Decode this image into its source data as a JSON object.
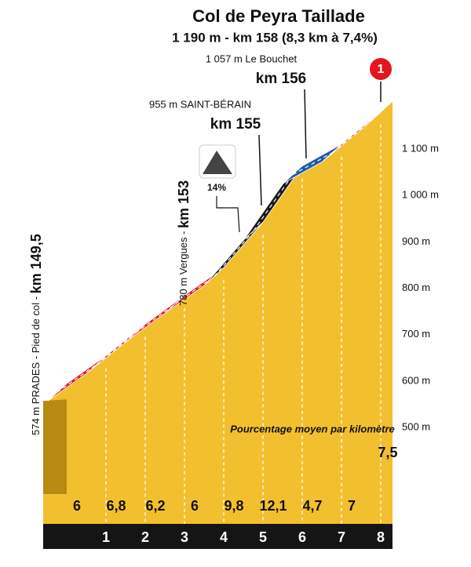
{
  "chart_data": {
    "type": "profile",
    "title": "Col de Peyra Taillade",
    "subtitle": "1 190 m - km 158 (8,3 km à 7,4%)",
    "start_altitude": 574,
    "length": 8.3,
    "km_ticks": [
      1,
      2,
      3,
      4,
      5,
      6,
      7,
      8
    ],
    "values": [
      6,
      6.8,
      6.2,
      6,
      9.8,
      12.1,
      4.7,
      7,
      7.5
    ],
    "value_labels": [
      "6",
      "6,8",
      "6,2",
      "6",
      "9,8",
      "12,1",
      "4,7",
      "7",
      "7,5"
    ],
    "colors": [
      "#e3161d",
      "#e3161d",
      "#e3161d",
      "#e3161d",
      "#1b1b1b",
      "#1b1b1b",
      "#1e5aa8",
      "#e3161d",
      "#e3161d"
    ],
    "ylim": [
      500,
      1100
    ],
    "yticks": [
      {
        "value": 500,
        "label": "500 m"
      },
      {
        "value": 600,
        "label": "600 m"
      },
      {
        "value": 700,
        "label": "700 m"
      },
      {
        "value": 800,
        "label": "800 m"
      },
      {
        "value": 900,
        "label": "900 m"
      },
      {
        "value": 1000,
        "label": "1 000 m"
      },
      {
        "value": 1100,
        "label": "1 100 m"
      }
    ],
    "caption": "Pourcentage moyen par kilomètre",
    "annotations": {
      "start_label": "574 m  PRADES - Pied de col - ",
      "start_km": "km 149,5",
      "vergues_label": "780 m  Vergues - ",
      "vergues_km": "km 153",
      "berain_label": "955 m  SAINT-BÉRAIN",
      "berain_km": "km 155",
      "bouchet_label": "1 057 m  Le Bouchet",
      "bouchet_km": "km 156",
      "steep": "14%",
      "summit_marker": "1"
    }
  }
}
